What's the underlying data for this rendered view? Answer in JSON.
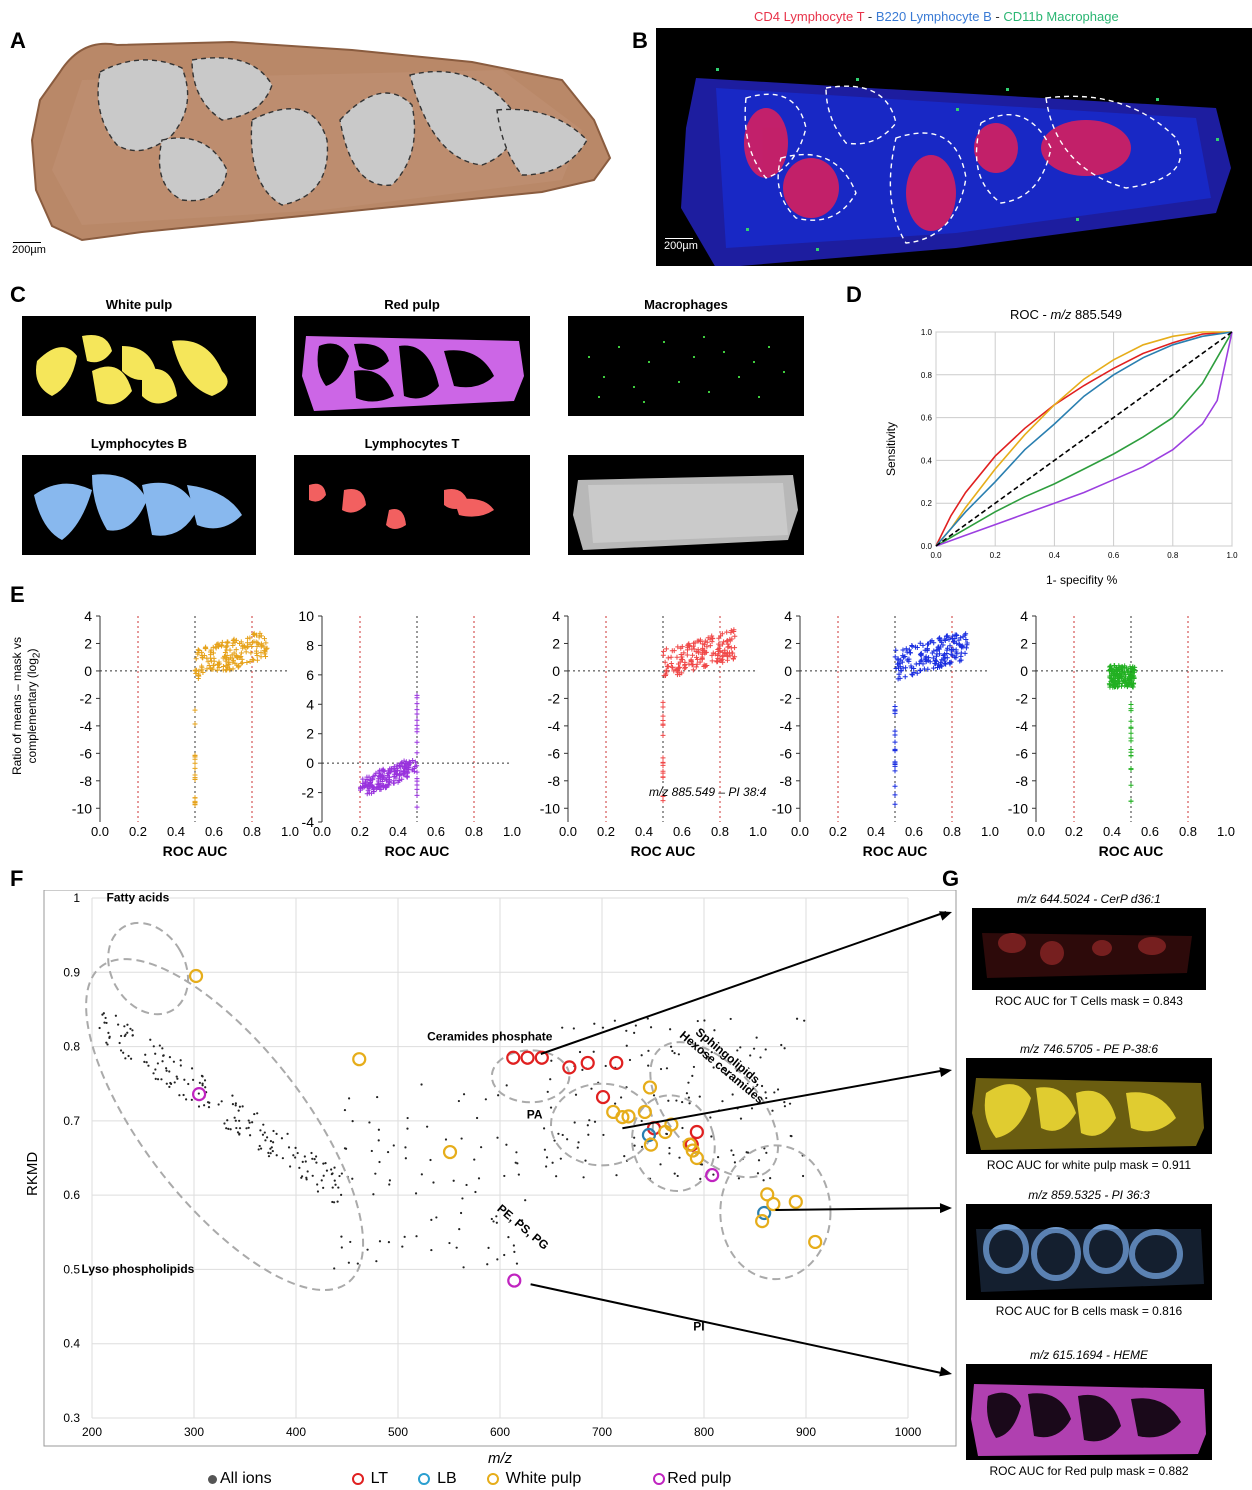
{
  "panels": {
    "a": {
      "letter": "A",
      "scale": "200µm"
    },
    "b": {
      "letter": "B",
      "scale": "200µm",
      "legend": [
        {
          "text": "CD4 Lymphocyte T",
          "color": "#e8334a"
        },
        {
          "text": " - ",
          "color": "#333333"
        },
        {
          "text": "B220 Lymphocyte B",
          "color": "#3a7bd5"
        },
        {
          "text": " - ",
          "color": "#333333"
        },
        {
          "text": "CD11b Macrophage",
          "color": "#2bb673"
        }
      ]
    },
    "c": {
      "letter": "C",
      "masks": [
        "White pulp",
        "Red pulp",
        "Macrophages",
        "Lymphocytes B",
        "Lymphocytes T"
      ]
    },
    "d": {
      "letter": "D",
      "title_prefix": "ROC - ",
      "title_mz": "m/z",
      "title_value": " 885.549",
      "ylabel": "Sensitivity",
      "xlabel": "1- specifity %"
    },
    "e": {
      "letter": "E",
      "ylabel_line1": "Ratio of means – mask vs",
      "ylabel_line2": "complementary (log",
      "ylabel_sub": "2",
      "ylabel_end": ")",
      "xlabel": "ROC AUC",
      "annotation": "m/z 885.549 – PI 38:4"
    },
    "f": {
      "letter": "F",
      "ylabel": "RKMD",
      "xlabel": "m/z",
      "groups": [
        "Fatty acids",
        "Ceramides phosphate",
        "Sphingolipids,",
        "Hexose ceramides",
        "PA",
        "PE, PS, PG",
        "Lyso phospholipids",
        "PI"
      ],
      "legend": [
        "All ions",
        "LT",
        "LB",
        "White pulp",
        "Red pulp"
      ]
    },
    "g": {
      "letter": "G",
      "images": [
        {
          "title": "m/z 644.5024 - CerP d36:1",
          "caption": "ROC AUC for T Cells mask = 0.843"
        },
        {
          "title": "m/z 746.5705 - PE P-38:6",
          "caption": "ROC AUC for white pulp mask = 0.911"
        },
        {
          "title": "m/z 859.5325 - PI 36:3",
          "caption": "ROC AUC for B cells mask = 0.816"
        },
        {
          "title": "m/z 615.1694 - HEME",
          "caption": "ROC AUC for Red pulp mask = 0.882"
        }
      ]
    }
  },
  "colors": {
    "lt": "#e02020",
    "lb": "#2a7fb0",
    "white_pulp": "#e6ad1a",
    "red_pulp": "#c024c0",
    "yellow_mask": "#f5e65a",
    "purple_mask": "#cc66e6",
    "blue_mask": "#88b8ee",
    "red_mask": "#f26060"
  },
  "chart_data": [
    {
      "type": "line",
      "title": "ROC - m/z 885.549",
      "xlabel": "1- specifity %",
      "ylabel": "Sensitivity",
      "xlim": [
        0,
        1
      ],
      "ylim": [
        0,
        1
      ],
      "x_ticks": [
        "0.0",
        "0.2",
        "0.4",
        "0.6",
        "0.8",
        "1.0"
      ],
      "y_ticks": [
        "0.0",
        "0.2",
        "0.4",
        "0.6",
        "0.8",
        "1.0"
      ],
      "grid": true,
      "series": [
        {
          "color": "#e02020",
          "x": [
            0,
            0.05,
            0.1,
            0.2,
            0.3,
            0.4,
            0.5,
            0.6,
            0.7,
            0.8,
            0.9,
            1.0
          ],
          "y": [
            0,
            0.14,
            0.25,
            0.42,
            0.55,
            0.66,
            0.75,
            0.83,
            0.9,
            0.95,
            0.99,
            1.0
          ]
        },
        {
          "color": "#e6ad1a",
          "x": [
            0,
            0.05,
            0.1,
            0.2,
            0.3,
            0.4,
            0.5,
            0.6,
            0.7,
            0.8,
            0.9,
            1.0
          ],
          "y": [
            0,
            0.08,
            0.18,
            0.36,
            0.52,
            0.66,
            0.78,
            0.87,
            0.94,
            0.98,
            1.0,
            1.0
          ]
        },
        {
          "color": "#2a7fb0",
          "x": [
            0,
            0.05,
            0.1,
            0.2,
            0.3,
            0.4,
            0.5,
            0.6,
            0.7,
            0.8,
            0.9,
            1.0
          ],
          "y": [
            0,
            0.08,
            0.16,
            0.3,
            0.45,
            0.57,
            0.7,
            0.8,
            0.88,
            0.94,
            0.98,
            1.0
          ]
        },
        {
          "color": "#2e9e3e",
          "x": [
            0,
            0.1,
            0.2,
            0.3,
            0.4,
            0.5,
            0.6,
            0.7,
            0.8,
            0.85,
            0.9,
            0.95,
            1.0
          ],
          "y": [
            0,
            0.08,
            0.16,
            0.23,
            0.29,
            0.36,
            0.43,
            0.51,
            0.6,
            0.68,
            0.76,
            0.88,
            1.0
          ]
        },
        {
          "color": "#9c3fe0",
          "x": [
            0,
            0.1,
            0.2,
            0.3,
            0.4,
            0.5,
            0.6,
            0.7,
            0.8,
            0.9,
            0.95,
            1.0
          ],
          "y": [
            0,
            0.05,
            0.1,
            0.15,
            0.2,
            0.25,
            0.31,
            0.37,
            0.45,
            0.57,
            0.68,
            1.0
          ]
        },
        {
          "color": "#000000",
          "dashed": true,
          "x": [
            0,
            1
          ],
          "y": [
            0,
            1
          ]
        }
      ]
    },
    {
      "type": "scatter",
      "xlabel": "ROC AUC",
      "ylabel": "Ratio of means – mask vs complementary (log2)",
      "x_ticks": [
        "0.0",
        "0.2",
        "0.4",
        "0.6",
        "0.8",
        "1.0"
      ],
      "panels": [
        {
          "color": "#e6a21a",
          "ylim": [
            -11,
            4
          ],
          "y_ticks": [
            "4",
            "2",
            "0",
            "-2",
            "-4",
            "-6",
            "-8",
            "-10"
          ]
        },
        {
          "color": "#9933dd",
          "ylim": [
            -4,
            10
          ],
          "y_ticks": [
            "10",
            "8",
            "6",
            "4",
            "2",
            "0",
            "-2",
            "-4"
          ]
        },
        {
          "color": "#f04848",
          "ylim": [
            -11,
            4
          ],
          "y_ticks": [
            "4",
            "2",
            "0",
            "-2",
            "-4",
            "-6",
            "-8",
            "-10"
          ]
        },
        {
          "color": "#1a2ee0",
          "ylim": [
            -11,
            4
          ],
          "y_ticks": [
            "4",
            "2",
            "0",
            "-2",
            "-4",
            "-6",
            "-8",
            "-10"
          ]
        },
        {
          "color": "#22b022",
          "ylim": [
            -11,
            4
          ],
          "y_ticks": [
            "4",
            "2",
            "0",
            "-2",
            "-4",
            "-6",
            "-8",
            "-10"
          ]
        }
      ]
    },
    {
      "type": "scatter",
      "xlabel": "m/z",
      "ylabel": "RKMD",
      "xlim": [
        200,
        1000
      ],
      "ylim": [
        0.3,
        1.0
      ],
      "x_ticks": [
        "200",
        "300",
        "400",
        "500",
        "600",
        "700",
        "800",
        "900",
        "1000"
      ],
      "y_ticks": [
        "1",
        "0.9",
        "0.8",
        "0.7",
        "0.6",
        "0.5",
        "0.4",
        "0.3"
      ],
      "highlighted": {
        "LT": [
          [
            613,
            0.785
          ],
          [
            627,
            0.785
          ],
          [
            641,
            0.785
          ],
          [
            668,
            0.772
          ],
          [
            686,
            0.778
          ],
          [
            701,
            0.732
          ],
          [
            714,
            0.778
          ],
          [
            751,
            0.69
          ],
          [
            788,
            0.668
          ],
          [
            793,
            0.685
          ]
        ],
        "LB": [
          [
            746,
            0.681
          ],
          [
            859,
            0.576
          ]
        ],
        "White pulp": [
          [
            302,
            0.895
          ],
          [
            462,
            0.783
          ],
          [
            551,
            0.658
          ],
          [
            711,
            0.712
          ],
          [
            720,
            0.705
          ],
          [
            726,
            0.706
          ],
          [
            742,
            0.712
          ],
          [
            747,
            0.745
          ],
          [
            748,
            0.668
          ],
          [
            762,
            0.685
          ],
          [
            768,
            0.695
          ],
          [
            786,
            0.668
          ],
          [
            789,
            0.66
          ],
          [
            793,
            0.65
          ],
          [
            857,
            0.565
          ],
          [
            862,
            0.601
          ],
          [
            868,
            0.588
          ],
          [
            890,
            0.591
          ],
          [
            909,
            0.537
          ]
        ],
        "Red pulp": [
          [
            305,
            0.736
          ],
          [
            614,
            0.485
          ],
          [
            808,
            0.627
          ]
        ]
      }
    }
  ]
}
